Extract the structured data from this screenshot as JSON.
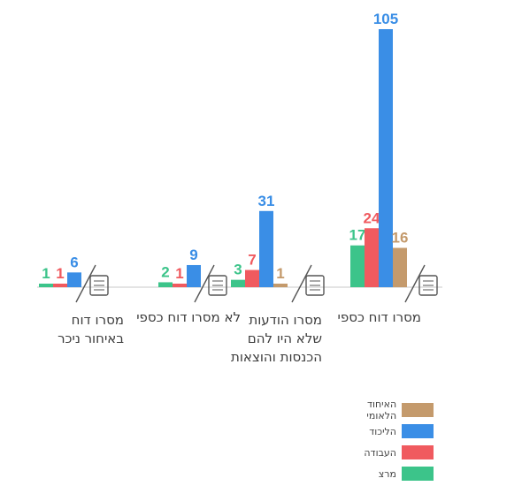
{
  "chart_data": {
    "type": "bar",
    "categories": [
      "מסרו דוח כספי",
      "מסרו הודעות שלא היו להם הכנסות והוצאות",
      "לא מסרו דוח כספי",
      "מסרו דוח באיחור ניכר"
    ],
    "category_lines": [
      [
        "מסרו דוח כספי"
      ],
      [
        "מסרו הודעות",
        "שלא היו להם",
        "הכנסות והוצאות"
      ],
      [
        "לא מסרו דוח כספי"
      ],
      [
        "מסרו דוח",
        "באיחור ניכר"
      ]
    ],
    "category_icons": [
      "calculator-document-icon",
      "hand-money-icon",
      "crossed-document-icon",
      "calendar-clock-icon"
    ],
    "series": [
      {
        "name": "מרצ",
        "color": "#3cc48a",
        "values": [
          17,
          3,
          2,
          1
        ]
      },
      {
        "name": "העבודה",
        "color": "#f05a5f",
        "values": [
          24,
          7,
          1,
          1
        ]
      },
      {
        "name": "הליכוד",
        "color": "#3a8ee6",
        "values": [
          105,
          31,
          9,
          6
        ]
      },
      {
        "name": "האיחוד הלאומי",
        "color": "#c49a6c",
        "values": [
          16,
          1,
          null,
          null
        ]
      }
    ],
    "legend_order": [
      "האיחוד הלאומי",
      "הליכוד",
      "העבודה",
      "מרצ"
    ],
    "legend_position": "bottom-right",
    "ylim": [
      0,
      105
    ],
    "grid": false
  }
}
